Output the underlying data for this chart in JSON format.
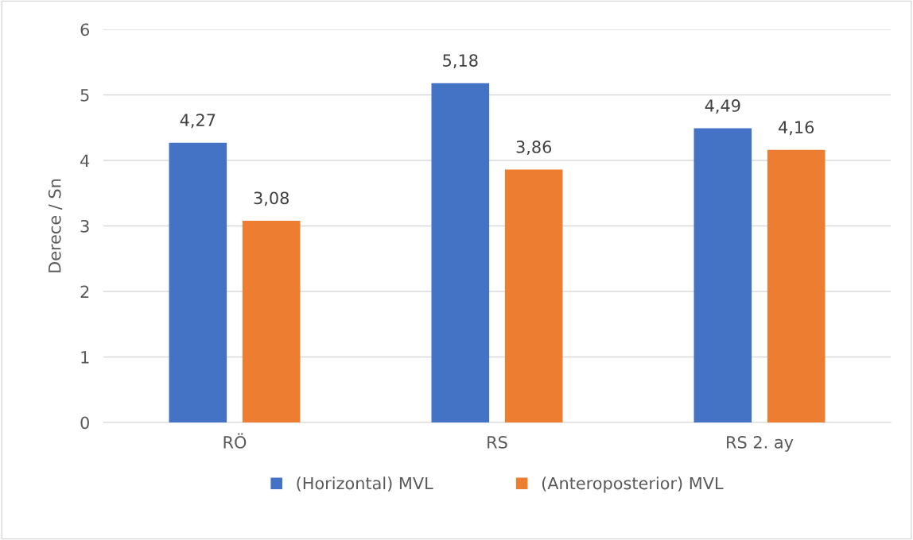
{
  "chart_data": {
    "type": "bar",
    "ylabel": "Derece / Sn",
    "categories": [
      "RÖ",
      "RS",
      "RS 2. ay"
    ],
    "series": [
      {
        "name": "(Horizontal) MVL",
        "color": "#4472c4",
        "values": [
          4.27,
          5.18,
          4.49
        ],
        "value_labels": [
          "4,27",
          "5,18",
          "4,49"
        ]
      },
      {
        "name": "(Anteroposterior) MVL",
        "color": "#ed7d31",
        "values": [
          3.08,
          3.86,
          4.16
        ],
        "value_labels": [
          "3,08",
          "3,86",
          "4,16"
        ]
      }
    ],
    "ylim": [
      0,
      6
    ],
    "yticks": [
      0,
      1,
      2,
      3,
      4,
      5,
      6
    ],
    "grid": "y",
    "legend": "bottom"
  }
}
